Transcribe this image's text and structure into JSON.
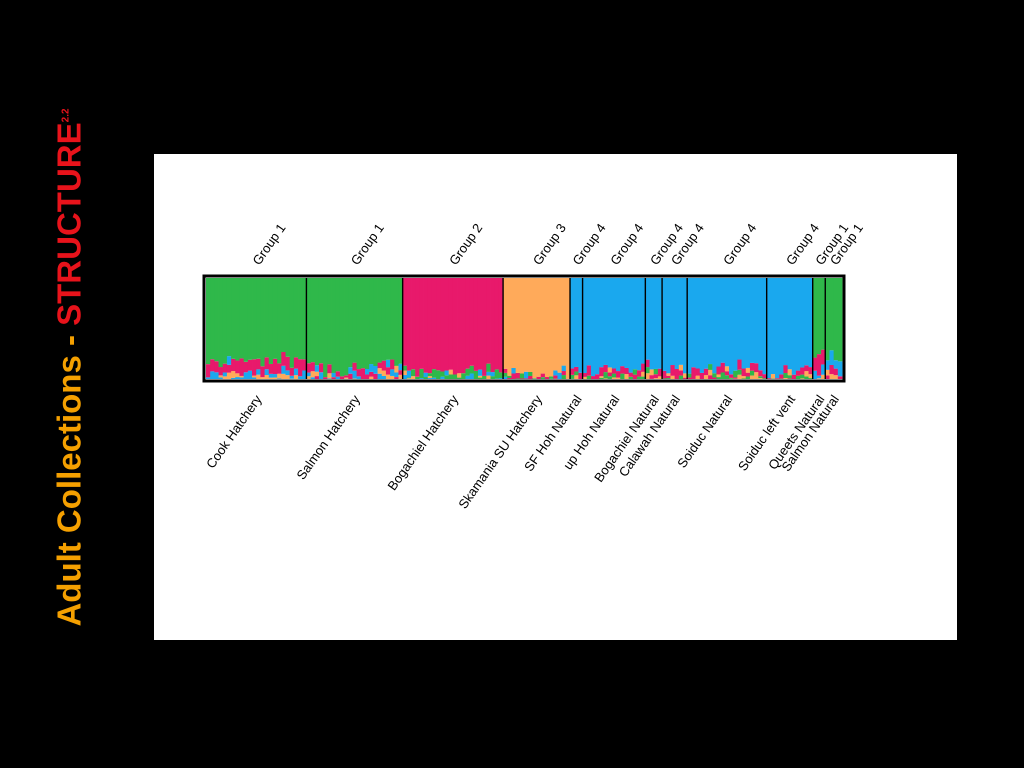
{
  "slide": {
    "title_main": "Adult Collections - ",
    "title_accent": "STRUCTURE",
    "title_sup": "2.2"
  },
  "colors": {
    "background": "#000000",
    "title_main": "#f5a000",
    "title_accent": "#e8131b"
  },
  "chart_data": {
    "type": "bar",
    "subtype": "stacked-admixture",
    "title": "",
    "xlabel": "",
    "ylabel": "",
    "ylim": [
      0,
      1
    ],
    "clusters": [
      {
        "color": "#2fb84a"
      },
      {
        "color": "#e8196b"
      },
      {
        "color": "#ffaa5a"
      },
      {
        "color": "#1aa8ee"
      }
    ],
    "populations": [
      {
        "name": "Cook Hatchery",
        "group": "Group 1",
        "n": 24,
        "base": [
          0.82,
          0.12,
          0.02,
          0.04
        ]
      },
      {
        "name": "Salmon Hatchery",
        "group": "Group 1",
        "n": 23,
        "base": [
          0.88,
          0.06,
          0.02,
          0.04
        ]
      },
      {
        "name": "Bogachiel Hatchery",
        "group": "Group 2",
        "n": 24,
        "base": [
          0.05,
          0.92,
          0.01,
          0.02
        ]
      },
      {
        "name": "Skamania SU Hatchery",
        "group": "Group 3",
        "n": 16,
        "base": [
          0.01,
          0.02,
          0.95,
          0.02
        ]
      },
      {
        "name": "SF Hoh Natural",
        "group": "Group 4",
        "n": 3,
        "base": [
          0.03,
          0.08,
          0.02,
          0.87
        ]
      },
      {
        "name": "up Hoh Natural",
        "group": "Group 4",
        "n": 15,
        "base": [
          0.03,
          0.06,
          0.02,
          0.89
        ]
      },
      {
        "name": "Bogachiel Natural",
        "group": "Group 4",
        "n": 4,
        "base": [
          0.02,
          0.05,
          0.02,
          0.91
        ]
      },
      {
        "name": "Calawah Natural",
        "group": "Group 4",
        "n": 6,
        "base": [
          0.02,
          0.06,
          0.02,
          0.9
        ]
      },
      {
        "name": "Soiduc Natural",
        "group": "Group 4",
        "n": 19,
        "base": [
          0.02,
          0.06,
          0.02,
          0.9
        ]
      },
      {
        "name": "Soiduc left vent",
        "group": "Group 4",
        "n": 11,
        "base": [
          0.02,
          0.04,
          0.02,
          0.92
        ]
      },
      {
        "name": "Queets Natural",
        "group": "Group 1",
        "n": 3,
        "base": [
          0.72,
          0.18,
          0.03,
          0.07
        ]
      },
      {
        "name": "Salmon Natural",
        "group": "Group 1",
        "n": 4,
        "base": [
          0.8,
          0.06,
          0.02,
          0.12
        ]
      }
    ]
  }
}
